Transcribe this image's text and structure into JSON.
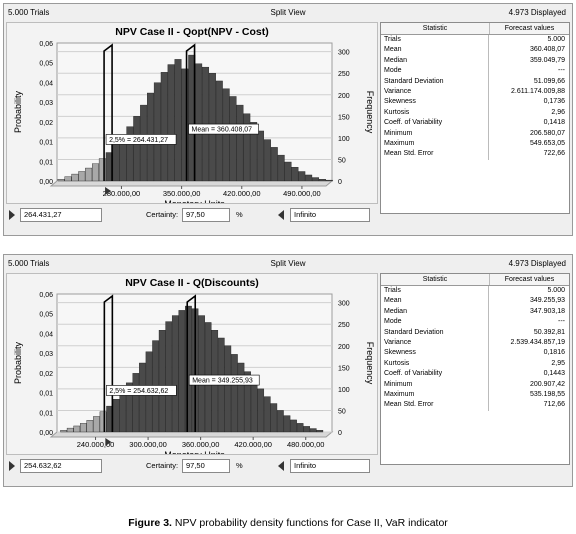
{
  "panels": [
    {
      "trials_label": "5.000 Trials",
      "view_label": "Split View",
      "displayed_label": "4.973 Displayed",
      "stats_header": [
        "Statistic",
        "Forecast values"
      ],
      "stats": [
        [
          "Trials",
          "5.000"
        ],
        [
          "Mean",
          "360.408,07"
        ],
        [
          "Median",
          "359.049,79"
        ],
        [
          "Mode",
          "---"
        ],
        [
          "Standard Deviation",
          "51.099,66"
        ],
        [
          "Variance",
          "2.611.174.009,88"
        ],
        [
          "Skewness",
          "0,1736"
        ],
        [
          "Kurtosis",
          "2,96"
        ],
        [
          "Coeff. of Variability",
          "0,1418"
        ],
        [
          "Minimum",
          "206.580,07"
        ],
        [
          "Maximum",
          "549.653,05"
        ],
        [
          "Mean Std. Error",
          "722,66"
        ]
      ],
      "lower_bound": "264.431,27",
      "certainty_label": "Certainty:",
      "certainty_value": "97,50",
      "percent_sign": "%",
      "upper_bound": "Infinito",
      "chart_data": {
        "type": "bar",
        "title": "NPV Case II - Qopt(NPV - Cost)",
        "xlabel": "Monetary Units",
        "ylabel_left": "Probability",
        "ylabel_right": "Frequency",
        "x_ticks": [
          "280.000,00",
          "350.000,00",
          "420.000,00",
          "490.000,00"
        ],
        "x_tick_values": [
          280000,
          350000,
          420000,
          490000
        ],
        "xlim": [
          205000,
          525000
        ],
        "y_ticks_left": [
          "0,00",
          "0,01",
          "0,01",
          "0,02",
          "0,03",
          "0,04",
          "0,05",
          "0,06"
        ],
        "y_ticks_right": [
          "0",
          "50",
          "100",
          "150",
          "200",
          "250",
          "300"
        ],
        "ylim_frequency": [
          0,
          320
        ],
        "bin_width": 8000,
        "bin_starts": [
          206000,
          214000,
          222000,
          230000,
          238000,
          246000,
          254000,
          262000,
          270000,
          278000,
          286000,
          294000,
          302000,
          310000,
          318000,
          326000,
          334000,
          342000,
          350000,
          358000,
          366000,
          374000,
          382000,
          390000,
          398000,
          406000,
          414000,
          422000,
          430000,
          438000,
          446000,
          454000,
          462000,
          470000,
          478000,
          486000,
          494000,
          502000,
          510000,
          518000
        ],
        "frequencies": [
          4,
          10,
          16,
          22,
          30,
          40,
          52,
          66,
          84,
          104,
          126,
          150,
          176,
          204,
          228,
          252,
          270,
          282,
          260,
          292,
          272,
          264,
          250,
          232,
          214,
          196,
          176,
          156,
          136,
          116,
          96,
          78,
          60,
          44,
          32,
          22,
          14,
          8,
          4,
          2
        ],
        "annotations": [
          "2,5% = 264.431,27",
          "Mean = 360.408,07"
        ],
        "cutoff_value": 264431.27,
        "mean_value": 360408.07,
        "colors": {
          "tail": "#a8a8a8",
          "body": "#4a4a4a"
        }
      }
    },
    {
      "trials_label": "5.000 Trials",
      "view_label": "Split View",
      "displayed_label": "4.973 Displayed",
      "stats_header": [
        "Statistic",
        "Forecast values"
      ],
      "stats": [
        [
          "Trials",
          "5.000"
        ],
        [
          "Mean",
          "349.255,93"
        ],
        [
          "Median",
          "347.903,18"
        ],
        [
          "Mode",
          "---"
        ],
        [
          "Standard Deviation",
          "50.392,81"
        ],
        [
          "Variance",
          "2.539.434.857,19"
        ],
        [
          "Skewness",
          "0,1816"
        ],
        [
          "Kurtosis",
          "2,95"
        ],
        [
          "Coeff. of Variability",
          "0,1443"
        ],
        [
          "Minimum",
          "200.907,42"
        ],
        [
          "Maximum",
          "535.198,55"
        ],
        [
          "Mean Std. Error",
          "712,66"
        ]
      ],
      "lower_bound": "254.632,62",
      "certainty_label": "Certainty:",
      "certainty_value": "97,50",
      "percent_sign": "%",
      "upper_bound": "Infinito",
      "chart_data": {
        "type": "bar",
        "title": "NPV Case II - Q(Discounts)",
        "xlabel": "Monetary Units",
        "ylabel_left": "Probability",
        "ylabel_right": "Frequency",
        "x_ticks": [
          "240.000,00",
          "300.000,00",
          "360.000,00",
          "420.000,00",
          "480.000,00"
        ],
        "x_tick_values": [
          240000,
          300000,
          360000,
          420000,
          480000
        ],
        "xlim": [
          196000,
          510000
        ],
        "y_ticks_left": [
          "0,00",
          "0,01",
          "0,01",
          "0,02",
          "0,03",
          "0,04",
          "0,05",
          "0,06"
        ],
        "y_ticks_right": [
          "0",
          "50",
          "100",
          "150",
          "200",
          "250",
          "300"
        ],
        "ylim_frequency": [
          0,
          320
        ],
        "bin_width": 7500,
        "bin_starts": [
          200000,
          207500,
          215000,
          222500,
          230000,
          237500,
          245000,
          252500,
          260000,
          267500,
          275000,
          282500,
          290000,
          297500,
          305000,
          312500,
          320000,
          327500,
          335000,
          342500,
          350000,
          357500,
          365000,
          372500,
          380000,
          387500,
          395000,
          402500,
          410000,
          417500,
          425000,
          432500,
          440000,
          447500,
          455000,
          462500,
          470000,
          477500,
          485000,
          492500
        ],
        "frequencies": [
          4,
          9,
          14,
          20,
          27,
          36,
          47,
          60,
          76,
          94,
          114,
          136,
          160,
          186,
          212,
          236,
          256,
          270,
          282,
          292,
          286,
          270,
          254,
          236,
          218,
          200,
          180,
          160,
          140,
          120,
          100,
          82,
          66,
          50,
          38,
          28,
          20,
          13,
          8,
          4
        ],
        "annotations": [
          "2,5% = 254.632,62",
          "Mean = 349.255,93"
        ],
        "cutoff_value": 254632.62,
        "mean_value": 349255.93,
        "colors": {
          "tail": "#a8a8a8",
          "body": "#4a4a4a"
        }
      }
    }
  ],
  "caption": {
    "label": "Figure 3.",
    "text": " NPV probability density functions for Case II, VaR indicator"
  }
}
